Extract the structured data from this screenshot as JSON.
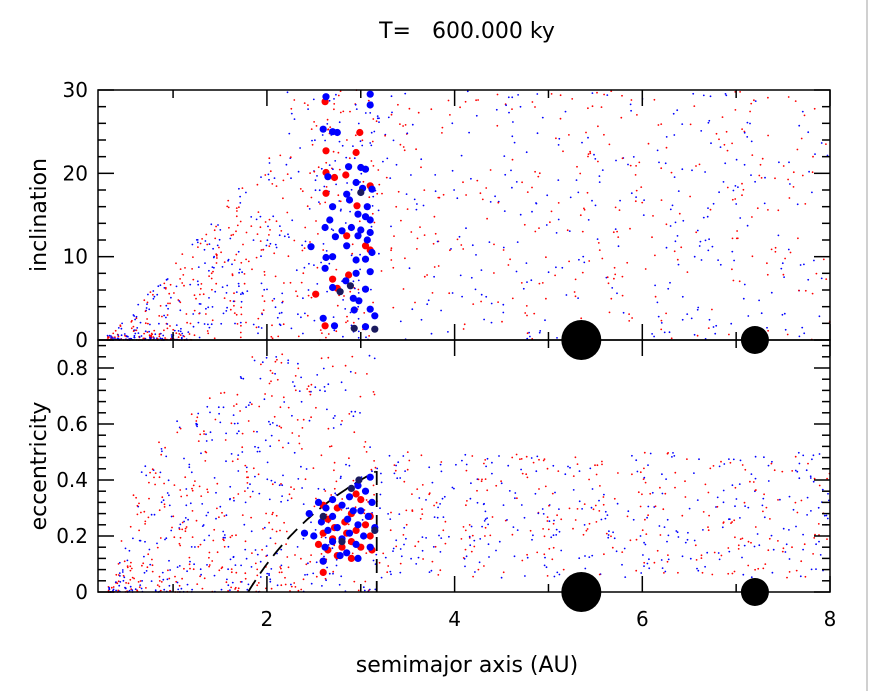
{
  "chart_data": {
    "title": "T=   600.000 ky",
    "x_label": "semimajor axis (AU)",
    "x_range": [
      0.2,
      8
    ],
    "x_ticks": [
      2,
      4,
      6,
      8
    ],
    "panels": [
      {
        "id": "inclination",
        "type": "scatter",
        "y_label": "inclination",
        "y_range": [
          0,
          30
        ],
        "y_ticks": [
          0,
          10,
          20,
          30
        ],
        "planets": [
          {
            "name": "large-planet",
            "a": 5.35,
            "y": 0,
            "color": "#000000"
          },
          {
            "name": "small-planet",
            "a": 7.2,
            "y": 0,
            "color": "#000000"
          }
        ],
        "large_bodies": [
          {
            "color": "#ff0000",
            "points": [
              [
                2.62,
                28.6
              ],
              [
                2.95,
                22.5
              ],
              [
                2.99,
                24.9
              ],
              [
                2.63,
                22.7
              ],
              [
                2.63,
                20.1
              ],
              [
                2.72,
                19.5
              ],
              [
                2.63,
                17.6
              ],
              [
                2.96,
                16.1
              ],
              [
                2.84,
                19.8
              ],
              [
                3.1,
                18.5
              ],
              [
                2.85,
                12.5
              ],
              [
                3.05,
                11.3
              ],
              [
                3.1,
                10.8
              ],
              [
                2.7,
                7.3
              ],
              [
                2.87,
                7.8
              ],
              [
                2.75,
                6.2
              ],
              [
                2.52,
                5.5
              ],
              [
                2.62,
                1.7
              ]
            ]
          },
          {
            "color": "#0000ff",
            "points": [
              [
                2.63,
                29.2
              ],
              [
                3.1,
                29.5
              ],
              [
                3.1,
                28.2
              ],
              [
                2.6,
                25.3
              ],
              [
                2.7,
                25.0
              ],
              [
                2.75,
                24.9
              ],
              [
                2.87,
                20.8
              ],
              [
                2.65,
                19.6
              ],
              [
                3.05,
                20.5
              ],
              [
                3.0,
                20.7
              ],
              [
                2.95,
                18.9
              ],
              [
                3.02,
                18.2
              ],
              [
                3.12,
                18.1
              ],
              [
                2.85,
                17.5
              ],
              [
                2.7,
                16.0
              ],
              [
                2.88,
                16.8
              ],
              [
                3.07,
                16.0
              ],
              [
                2.97,
                15.1
              ],
              [
                3.1,
                14.4
              ],
              [
                3.05,
                14.8
              ],
              [
                2.67,
                14.4
              ],
              [
                3.0,
                13.2
              ],
              [
                2.9,
                13.5
              ],
              [
                2.62,
                13.5
              ],
              [
                2.8,
                13.1
              ],
              [
                3.1,
                12.9
              ],
              [
                2.73,
                12.4
              ],
              [
                2.97,
                12.5
              ],
              [
                3.07,
                12.0
              ],
              [
                2.47,
                11.2
              ],
              [
                2.85,
                11.3
              ],
              [
                3.12,
                10.5
              ],
              [
                2.7,
                10.0
              ],
              [
                2.63,
                9.9
              ],
              [
                2.95,
                9.6
              ],
              [
                3.05,
                9.7
              ],
              [
                2.62,
                8.6
              ],
              [
                3.1,
                8.2
              ],
              [
                2.95,
                8.0
              ],
              [
                2.84,
                7.1
              ],
              [
                2.7,
                6.3
              ],
              [
                3.05,
                6.1
              ],
              [
                2.92,
                5.0
              ],
              [
                2.98,
                4.7
              ],
              [
                3.1,
                3.7
              ],
              [
                2.93,
                3.6
              ],
              [
                2.6,
                2.6
              ],
              [
                3.15,
                2.9
              ],
              [
                2.72,
                1.7
              ],
              [
                3.05,
                1.6
              ]
            ]
          },
          {
            "color": "#1a1a5e",
            "points": [
              [
                3.0,
                17.7
              ],
              [
                2.89,
                6.5
              ],
              [
                2.78,
                5.8
              ],
              [
                2.93,
                1.4
              ],
              [
                3.15,
                1.3
              ]
            ]
          }
        ]
      },
      {
        "id": "eccentricity",
        "type": "scatter",
        "y_label": "eccentricity",
        "y_range": [
          0,
          0.9
        ],
        "y_ticks": [
          0,
          0.2,
          0.4,
          0.6,
          0.8
        ],
        "planets": [
          {
            "name": "large-planet",
            "a": 5.35,
            "y": 0,
            "color": "#000000"
          },
          {
            "name": "small-planet",
            "a": 7.2,
            "y": 0,
            "color": "#000000"
          }
        ],
        "dashed_curve": {
          "description": "perihelion-crossing boundary",
          "q_au": 1.8,
          "a_max": 3.17
        },
        "large_bodies": [
          {
            "color": "#ff0000",
            "points": [
              [
                2.95,
                0.35
              ],
              [
                3.0,
                0.33
              ],
              [
                2.6,
                0.31
              ],
              [
                2.75,
                0.3
              ],
              [
                2.9,
                0.28
              ],
              [
                3.1,
                0.27
              ],
              [
                2.65,
                0.26
              ],
              [
                2.83,
                0.25
              ],
              [
                3.05,
                0.24
              ],
              [
                2.72,
                0.23
              ],
              [
                2.95,
                0.22
              ],
              [
                2.6,
                0.21
              ],
              [
                2.85,
                0.21
              ],
              [
                3.1,
                0.2
              ],
              [
                2.7,
                0.19
              ],
              [
                2.9,
                0.18
              ],
              [
                2.55,
                0.17
              ],
              [
                3.0,
                0.16
              ],
              [
                2.8,
                0.16
              ],
              [
                2.65,
                0.15
              ],
              [
                3.12,
                0.15
              ],
              [
                2.75,
                0.13
              ],
              [
                2.9,
                0.12
              ],
              [
                2.6,
                0.11
              ],
              [
                2.6,
                0.07
              ]
            ]
          },
          {
            "color": "#0000ff",
            "points": [
              [
                3.1,
                0.41
              ],
              [
                2.97,
                0.38
              ],
              [
                3.05,
                0.36
              ],
              [
                2.88,
                0.34
              ],
              [
                2.7,
                0.33
              ],
              [
                2.55,
                0.32
              ],
              [
                3.12,
                0.32
              ],
              [
                2.8,
                0.31
              ],
              [
                2.63,
                0.3
              ],
              [
                2.92,
                0.29
              ],
              [
                3.0,
                0.29
              ],
              [
                2.45,
                0.28
              ],
              [
                2.7,
                0.27
              ],
              [
                3.08,
                0.27
              ],
              [
                2.86,
                0.26
              ],
              [
                2.58,
                0.25
              ],
              [
                2.97,
                0.24
              ],
              [
                2.75,
                0.23
              ],
              [
                3.15,
                0.23
              ],
              [
                2.65,
                0.22
              ],
              [
                2.88,
                0.21
              ],
              [
                2.5,
                0.2
              ],
              [
                3.03,
                0.2
              ],
              [
                2.8,
                0.19
              ],
              [
                2.7,
                0.18
              ],
              [
                2.95,
                0.17
              ],
              [
                2.62,
                0.16
              ],
              [
                3.1,
                0.16
              ],
              [
                2.85,
                0.14
              ],
              [
                2.4,
                0.21
              ],
              [
                2.78,
                0.13
              ],
              [
                2.97,
                0.12
              ],
              [
                2.6,
                0.11
              ]
            ]
          },
          {
            "color": "#1a1a5e",
            "points": [
              [
                2.98,
                0.4
              ],
              [
                2.9,
                0.37
              ],
              [
                2.6,
                0.27
              ],
              [
                3.15,
                0.22
              ],
              [
                2.8,
                0.18
              ]
            ]
          }
        ]
      }
    ]
  }
}
